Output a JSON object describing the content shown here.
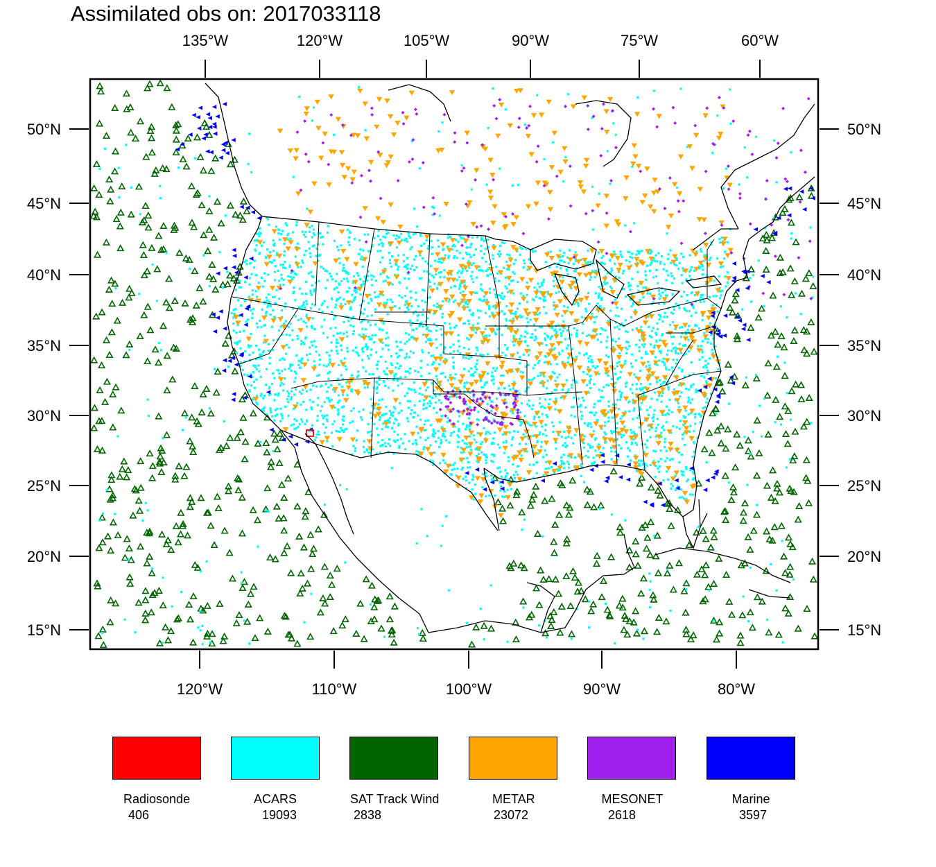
{
  "title": "Assimilated obs on: 2017033118",
  "map": {
    "type": "observation-map",
    "top_lon_labels": [
      "135°W",
      "120°W",
      "105°W",
      "90°W",
      "75°W",
      "60°W"
    ],
    "bottom_lon_labels": [
      "120°W",
      "110°W",
      "100°W",
      "90°W",
      "80°W"
    ],
    "left_lat_labels": [
      "50°N",
      "45°N",
      "40°N",
      "35°N",
      "30°N",
      "25°N",
      "20°N",
      "15°N"
    ],
    "right_lat_labels": [
      "50°N",
      "45°N",
      "40°N",
      "35°N",
      "30°N",
      "25°N",
      "20°N",
      "15°N"
    ]
  },
  "legend": [
    {
      "name": "Radiosonde",
      "count": "406",
      "color": "#ff0000"
    },
    {
      "name": "ACARS",
      "count": "19093",
      "color": "#00ffff"
    },
    {
      "name": "SAT Track Wind",
      "count": "2838",
      "color": "#006400"
    },
    {
      "name": "METAR",
      "count": "23072",
      "color": "#ffa500"
    },
    {
      "name": "MESONET",
      "count": "2618",
      "color": "#a020f0"
    },
    {
      "name": "Marine",
      "count": "3597",
      "color": "#0000ff"
    }
  ]
}
